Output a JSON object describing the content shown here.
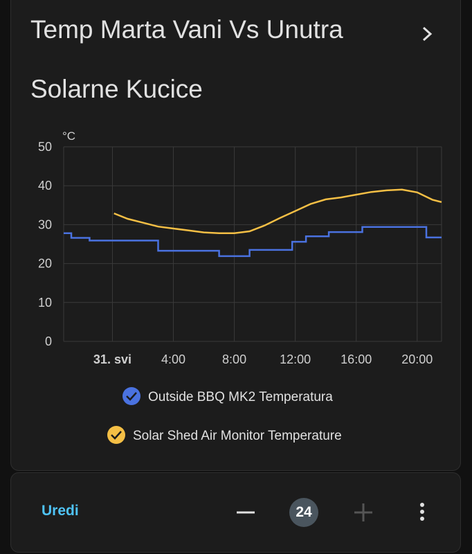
{
  "header": {
    "title": "Temp Marta Vani Vs Unutra",
    "subtitle": "Solarne Kucice"
  },
  "chart_data": {
    "type": "line",
    "y_unit": "°C",
    "xlim": [
      -3.2,
      21.6
    ],
    "xticks": [
      {
        "value": 0,
        "label": "31. svi"
      },
      {
        "value": 4,
        "label": "4:00"
      },
      {
        "value": 8,
        "label": "8:00"
      },
      {
        "value": 12,
        "label": "12:00"
      },
      {
        "value": 16,
        "label": "16:00"
      },
      {
        "value": 20,
        "label": "20:00"
      }
    ],
    "ylim": [
      0,
      50
    ],
    "yticks": [
      0,
      10,
      20,
      30,
      40,
      50
    ],
    "grid": true,
    "series": [
      {
        "name": "Outside BBQ MK2 Temperatura",
        "color": "#4a72e0",
        "x": [
          -3.2,
          -2.7,
          -2.7,
          -1.5,
          -1.5,
          3.0,
          3.0,
          7.0,
          7.0,
          9.0,
          9.0,
          11.8,
          11.8,
          12.7,
          12.7,
          14.2,
          14.2,
          16.4,
          16.4,
          20.6,
          20.6,
          21.6
        ],
        "values": [
          27.8,
          27.8,
          26.6,
          26.6,
          25.9,
          25.9,
          23.3,
          23.3,
          21.9,
          21.9,
          23.5,
          23.5,
          25.6,
          25.6,
          27.0,
          27.0,
          28.1,
          28.1,
          29.4,
          29.4,
          26.7,
          26.7
        ]
      },
      {
        "name": "Solar Shed Air Monitor Temperature",
        "color": "#f4bf45",
        "x": [
          0.1,
          1,
          2,
          3,
          4,
          5,
          6,
          7,
          8,
          9,
          10,
          11,
          12,
          13,
          14,
          15,
          16,
          17,
          18,
          19,
          20,
          21,
          21.6
        ],
        "values": [
          32.9,
          31.5,
          30.5,
          29.5,
          29.0,
          28.5,
          28.0,
          27.8,
          27.8,
          28.3,
          29.8,
          31.7,
          33.5,
          35.3,
          36.5,
          37.0,
          37.7,
          38.4,
          38.8,
          39.0,
          38.3,
          36.4,
          35.8
        ]
      }
    ]
  },
  "footer": {
    "edit": "Uredi",
    "hours": 24
  }
}
